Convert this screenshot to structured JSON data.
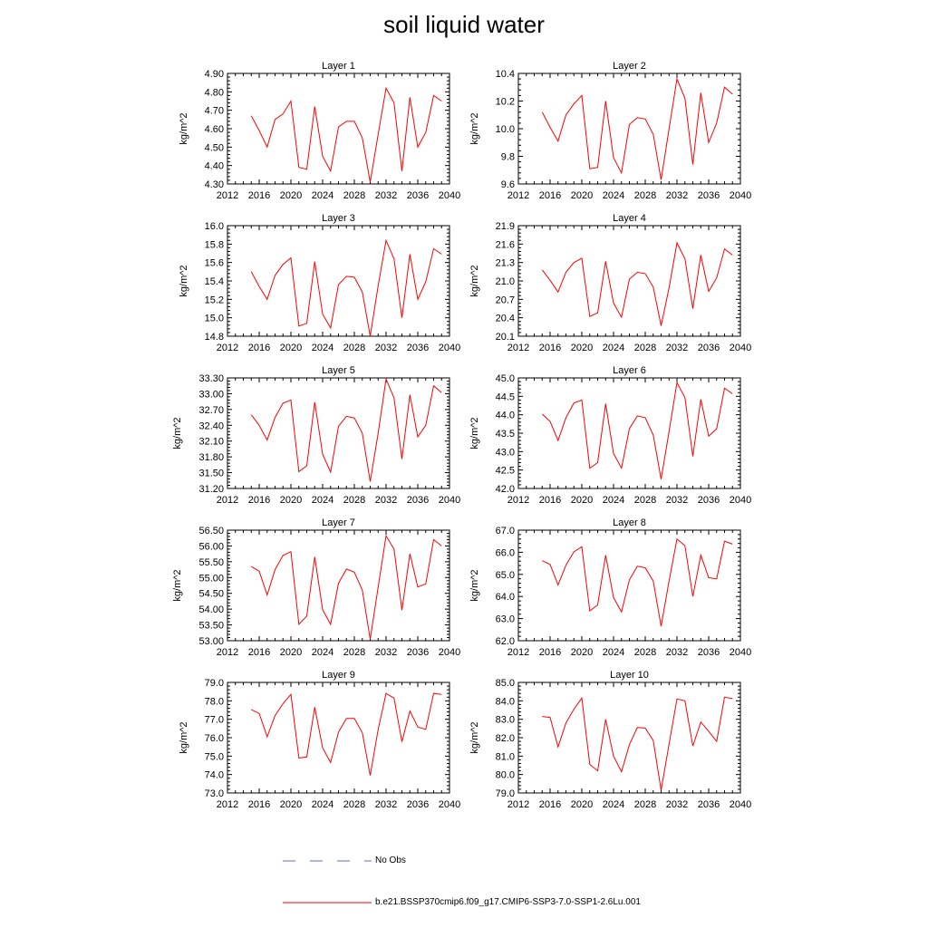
{
  "title": "soil liquid water",
  "legend": {
    "obs_label": "No Obs",
    "obs_color": "#5b6fbf",
    "model_label": "b.e21.BSSP370cmip6.f09_g17.CMIP6-SSP3-7.0-SSP1-2.6Lu.001",
    "model_color": "#ff0000"
  },
  "chart_data": [
    {
      "type": "line",
      "title": "Layer 1",
      "ylabel": "kg/m^2",
      "xlim": [
        2012,
        2040
      ],
      "xticks": [
        "2012",
        "2016",
        "2020",
        "2024",
        "2028",
        "2032",
        "2036",
        "2040"
      ],
      "ylim": [
        4.3,
        4.9
      ],
      "yticks": [
        "4.30",
        "4.40",
        "4.50",
        "4.60",
        "4.70",
        "4.80",
        "4.90"
      ],
      "x": [
        2015,
        2016,
        2017,
        2018,
        2019,
        2020,
        2021,
        2022,
        2023,
        2024,
        2025,
        2026,
        2027,
        2028,
        2029,
        2030,
        2031,
        2032,
        2033,
        2034,
        2035,
        2036,
        2037,
        2038,
        2039
      ],
      "series": [
        {
          "values": [
            4.67,
            4.59,
            4.5,
            4.65,
            4.68,
            4.75,
            4.39,
            4.38,
            4.72,
            4.45,
            4.37,
            4.61,
            4.64,
            4.64,
            4.55,
            4.31,
            4.57,
            4.82,
            4.74,
            4.37,
            4.77,
            4.5,
            4.58,
            4.78,
            4.75
          ]
        }
      ]
    },
    {
      "type": "line",
      "title": "Layer 2",
      "ylabel": "kg/m^2",
      "xlim": [
        2012,
        2040
      ],
      "xticks": [
        "2012",
        "2016",
        "2020",
        "2024",
        "2028",
        "2032",
        "2036",
        "2040"
      ],
      "ylim": [
        9.6,
        10.4
      ],
      "yticks": [
        "9.6",
        "9.8",
        "10.0",
        "10.2",
        "10.4"
      ],
      "x": [
        2015,
        2016,
        2017,
        2018,
        2019,
        2020,
        2021,
        2022,
        2023,
        2024,
        2025,
        2026,
        2027,
        2028,
        2029,
        2030,
        2031,
        2032,
        2033,
        2034,
        2035,
        2036,
        2037,
        2038,
        2039
      ],
      "series": [
        {
          "values": [
            10.12,
            10.01,
            9.91,
            10.1,
            10.18,
            10.24,
            9.71,
            9.72,
            10.2,
            9.79,
            9.68,
            10.03,
            10.08,
            10.07,
            9.96,
            9.63,
            10.0,
            10.36,
            10.22,
            9.74,
            10.26,
            9.9,
            10.04,
            10.3,
            10.25
          ]
        }
      ]
    },
    {
      "type": "line",
      "title": "Layer 3",
      "ylabel": "kg/m^2",
      "xlim": [
        2012,
        2040
      ],
      "xticks": [
        "2012",
        "2016",
        "2020",
        "2024",
        "2028",
        "2032",
        "2036",
        "2040"
      ],
      "ylim": [
        14.8,
        16.0
      ],
      "yticks": [
        "14.8",
        "15.0",
        "15.2",
        "15.4",
        "15.6",
        "15.8",
        "16.0"
      ],
      "x": [
        2015,
        2016,
        2017,
        2018,
        2019,
        2020,
        2021,
        2022,
        2023,
        2024,
        2025,
        2026,
        2027,
        2028,
        2029,
        2030,
        2031,
        2032,
        2033,
        2034,
        2035,
        2036,
        2037,
        2038,
        2039
      ],
      "series": [
        {
          "values": [
            15.5,
            15.34,
            15.2,
            15.46,
            15.58,
            15.65,
            14.91,
            14.94,
            15.61,
            15.04,
            14.89,
            15.36,
            15.45,
            15.44,
            15.28,
            14.8,
            15.35,
            15.84,
            15.64,
            15.0,
            15.69,
            15.2,
            15.39,
            15.75,
            15.69
          ]
        }
      ]
    },
    {
      "type": "line",
      "title": "Layer 4",
      "ylabel": "kg/m^2",
      "xlim": [
        2012,
        2040
      ],
      "xticks": [
        "2012",
        "2016",
        "2020",
        "2024",
        "2028",
        "2032",
        "2036",
        "2040"
      ],
      "ylim": [
        20.1,
        21.9
      ],
      "yticks": [
        "20.1",
        "20.4",
        "20.7",
        "21.0",
        "21.3",
        "21.6",
        "21.9"
      ],
      "x": [
        2015,
        2016,
        2017,
        2018,
        2019,
        2020,
        2021,
        2022,
        2023,
        2024,
        2025,
        2026,
        2027,
        2028,
        2029,
        2030,
        2031,
        2032,
        2033,
        2034,
        2035,
        2036,
        2037,
        2038,
        2039
      ],
      "series": [
        {
          "values": [
            21.18,
            21.01,
            20.82,
            21.14,
            21.3,
            21.37,
            20.42,
            20.48,
            21.32,
            20.64,
            20.41,
            21.03,
            21.14,
            21.12,
            20.9,
            20.27,
            20.89,
            21.62,
            21.36,
            20.55,
            21.42,
            20.83,
            21.05,
            21.52,
            21.42
          ]
        }
      ]
    },
    {
      "type": "line",
      "title": "Layer 5",
      "ylabel": "kg/m^2",
      "xlim": [
        2012,
        2040
      ],
      "xticks": [
        "2012",
        "2016",
        "2020",
        "2024",
        "2028",
        "2032",
        "2036",
        "2040"
      ],
      "ylim": [
        31.2,
        33.3
      ],
      "yticks": [
        "31.20",
        "31.50",
        "31.80",
        "32.10",
        "32.40",
        "32.70",
        "33.00",
        "33.30"
      ],
      "x": [
        2015,
        2016,
        2017,
        2018,
        2019,
        2020,
        2021,
        2022,
        2023,
        2024,
        2025,
        2026,
        2027,
        2028,
        2029,
        2030,
        2031,
        2032,
        2033,
        2034,
        2035,
        2036,
        2037,
        2038,
        2039
      ],
      "series": [
        {
          "values": [
            32.6,
            32.4,
            32.12,
            32.55,
            32.82,
            32.88,
            31.52,
            31.63,
            32.84,
            31.85,
            31.51,
            32.38,
            32.57,
            32.54,
            32.25,
            31.33,
            32.25,
            33.28,
            32.92,
            31.76,
            32.98,
            32.18,
            32.4,
            33.15,
            33.02
          ]
        }
      ]
    },
    {
      "type": "line",
      "title": "Layer 6",
      "ylabel": "kg/m^2",
      "xlim": [
        2012,
        2040
      ],
      "xticks": [
        "2012",
        "2016",
        "2020",
        "2024",
        "2028",
        "2032",
        "2036",
        "2040"
      ],
      "ylim": [
        42.0,
        45.0
      ],
      "yticks": [
        "42.0",
        "42.5",
        "43.0",
        "43.5",
        "44.0",
        "44.5",
        "45.0"
      ],
      "x": [
        2015,
        2016,
        2017,
        2018,
        2019,
        2020,
        2021,
        2022,
        2023,
        2024,
        2025,
        2026,
        2027,
        2028,
        2029,
        2030,
        2031,
        2032,
        2033,
        2034,
        2035,
        2036,
        2037,
        2038,
        2039
      ],
      "series": [
        {
          "values": [
            44.02,
            43.82,
            43.3,
            43.92,
            44.32,
            44.4,
            42.55,
            42.7,
            44.3,
            42.95,
            42.55,
            43.62,
            43.97,
            43.92,
            43.45,
            42.25,
            43.55,
            44.87,
            44.47,
            42.87,
            44.42,
            43.42,
            43.62,
            44.72,
            44.57
          ]
        }
      ]
    },
    {
      "type": "line",
      "title": "Layer 7",
      "ylabel": "kg/m^2",
      "xlim": [
        2012,
        2040
      ],
      "xticks": [
        "2012",
        "2016",
        "2020",
        "2024",
        "2028",
        "2032",
        "2036",
        "2040"
      ],
      "ylim": [
        53.0,
        56.5
      ],
      "yticks": [
        "53.00",
        "53.50",
        "54.00",
        "54.50",
        "55.00",
        "55.50",
        "56.00",
        "56.50"
      ],
      "x": [
        2015,
        2016,
        2017,
        2018,
        2019,
        2020,
        2021,
        2022,
        2023,
        2024,
        2025,
        2026,
        2027,
        2028,
        2029,
        2030,
        2031,
        2032,
        2033,
        2034,
        2035,
        2036,
        2037,
        2038,
        2039
      ],
      "series": [
        {
          "values": [
            55.35,
            55.2,
            54.45,
            55.25,
            55.7,
            55.82,
            53.52,
            53.78,
            55.65,
            53.98,
            53.52,
            54.82,
            55.27,
            55.17,
            54.6,
            53.05,
            54.7,
            56.32,
            55.9,
            53.97,
            55.75,
            54.7,
            54.8,
            56.2,
            56.0
          ]
        }
      ]
    },
    {
      "type": "line",
      "title": "Layer 8",
      "ylabel": "kg/m^2",
      "xlim": [
        2012,
        2040
      ],
      "xticks": [
        "2012",
        "2016",
        "2020",
        "2024",
        "2028",
        "2032",
        "2036",
        "2040"
      ],
      "ylim": [
        62.0,
        67.0
      ],
      "yticks": [
        "62.0",
        "63.0",
        "64.0",
        "65.0",
        "66.0",
        "67.0"
      ],
      "x": [
        2015,
        2016,
        2017,
        2018,
        2019,
        2020,
        2021,
        2022,
        2023,
        2024,
        2025,
        2026,
        2027,
        2028,
        2029,
        2030,
        2031,
        2032,
        2033,
        2034,
        2035,
        2036,
        2037,
        2038,
        2039
      ],
      "series": [
        {
          "values": [
            65.62,
            65.45,
            64.52,
            65.42,
            66.02,
            66.25,
            63.35,
            63.62,
            65.87,
            63.95,
            63.3,
            64.75,
            65.37,
            65.3,
            64.7,
            62.65,
            64.7,
            66.6,
            66.3,
            64.0,
            65.87,
            64.85,
            64.8,
            66.5,
            66.37
          ]
        }
      ]
    },
    {
      "type": "line",
      "title": "Layer 9",
      "ylabel": "kg/m^2",
      "xlim": [
        2012,
        2040
      ],
      "xticks": [
        "2012",
        "2016",
        "2020",
        "2024",
        "2028",
        "2032",
        "2036",
        "2040"
      ],
      "ylim": [
        73.0,
        79.0
      ],
      "yticks": [
        "73.0",
        "74.0",
        "75.0",
        "76.0",
        "77.0",
        "78.0",
        "79.0"
      ],
      "x": [
        2015,
        2016,
        2017,
        2018,
        2019,
        2020,
        2021,
        2022,
        2023,
        2024,
        2025,
        2026,
        2027,
        2028,
        2029,
        2030,
        2031,
        2032,
        2033,
        2034,
        2035,
        2036,
        2037,
        2038,
        2039
      ],
      "series": [
        {
          "values": [
            77.52,
            77.32,
            76.05,
            77.2,
            77.85,
            78.35,
            74.9,
            74.95,
            77.65,
            75.45,
            74.65,
            76.3,
            77.05,
            77.05,
            76.27,
            73.95,
            76.45,
            78.4,
            78.15,
            75.78,
            77.45,
            76.58,
            76.45,
            78.4,
            78.35
          ]
        }
      ]
    },
    {
      "type": "line",
      "title": "Layer 10",
      "ylabel": "kg/m^2",
      "xlim": [
        2012,
        2040
      ],
      "xticks": [
        "2012",
        "2016",
        "2020",
        "2024",
        "2028",
        "2032",
        "2036",
        "2040"
      ],
      "ylim": [
        79.0,
        85.0
      ],
      "yticks": [
        "79.0",
        "80.0",
        "81.0",
        "82.0",
        "83.0",
        "84.0",
        "85.0"
      ],
      "x": [
        2015,
        2016,
        2017,
        2018,
        2019,
        2020,
        2021,
        2022,
        2023,
        2024,
        2025,
        2026,
        2027,
        2028,
        2029,
        2030,
        2031,
        2032,
        2033,
        2034,
        2035,
        2036,
        2037,
        2038,
        2039
      ],
      "series": [
        {
          "values": [
            83.15,
            83.1,
            81.5,
            82.8,
            83.55,
            84.15,
            80.55,
            80.2,
            83.0,
            81.0,
            80.15,
            81.62,
            82.55,
            82.52,
            81.85,
            79.15,
            81.65,
            84.1,
            84.0,
            81.55,
            82.85,
            82.35,
            81.8,
            84.2,
            84.12
          ]
        }
      ]
    }
  ]
}
